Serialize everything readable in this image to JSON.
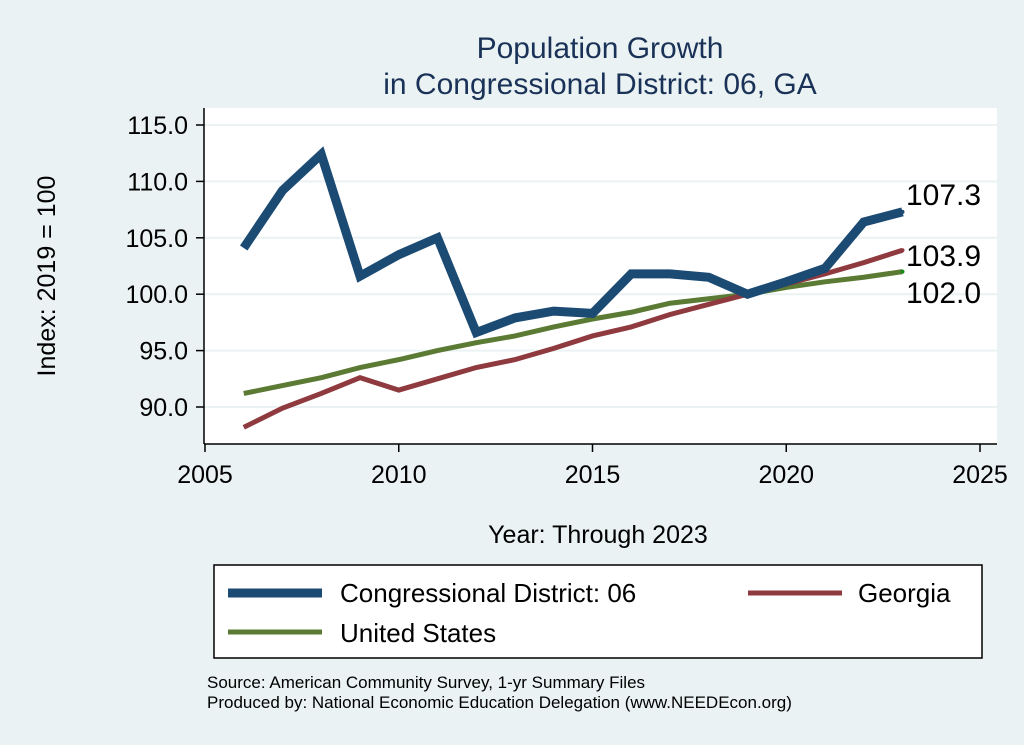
{
  "chart_data": {
    "type": "line",
    "title": [
      "Population Growth",
      "in Congressional District: 06, GA"
    ],
    "xlabel": "Year: Through 2023",
    "ylabel": "Index: 2019 = 100",
    "xlim": [
      2005,
      2025
    ],
    "ylim": [
      88,
      115
    ],
    "xticks": [
      2005,
      2010,
      2015,
      2020,
      2025
    ],
    "yticks": [
      90,
      95,
      100,
      105,
      110,
      115
    ],
    "ytick_labels": [
      "90.0",
      "95.0",
      "100.0",
      "105.0",
      "110.0",
      "115.0"
    ],
    "grid": true,
    "legend_position": "bottom",
    "x": [
      2006,
      2007,
      2008,
      2009,
      2010,
      2011,
      2012,
      2013,
      2014,
      2015,
      2016,
      2017,
      2018,
      2019,
      2020,
      2021,
      2022,
      2023
    ],
    "series": [
      {
        "name": "Congressional District: 06",
        "color": "#1b4a73",
        "values": [
          104.1,
          109.2,
          112.4,
          101.6,
          103.5,
          105.0,
          96.6,
          97.9,
          98.5,
          98.3,
          101.8,
          101.8,
          101.5,
          100.0,
          101.1,
          102.3,
          106.4,
          107.3
        ],
        "end_label": "107.3"
      },
      {
        "name": "Georgia",
        "color": "#8f3a3f",
        "values": [
          88.2,
          89.9,
          91.2,
          92.6,
          91.5,
          92.5,
          93.5,
          94.2,
          95.2,
          96.3,
          97.1,
          98.2,
          99.1,
          100.0,
          100.9,
          101.8,
          102.8,
          103.9
        ],
        "end_label": "103.9"
      },
      {
        "name": "United States",
        "color": "#5b7a34",
        "values": [
          91.2,
          91.9,
          92.6,
          93.5,
          94.2,
          95.0,
          95.7,
          96.3,
          97.1,
          97.8,
          98.4,
          99.2,
          99.6,
          100.0,
          100.6,
          101.1,
          101.5,
          102.0
        ],
        "end_label": "102.0"
      }
    ]
  },
  "notes": {
    "source": "Source: American Community Survey, 1-yr Summary Files",
    "producer": "Produced by: National Economic Education Delegation (www.NEEDEcon.org)"
  }
}
